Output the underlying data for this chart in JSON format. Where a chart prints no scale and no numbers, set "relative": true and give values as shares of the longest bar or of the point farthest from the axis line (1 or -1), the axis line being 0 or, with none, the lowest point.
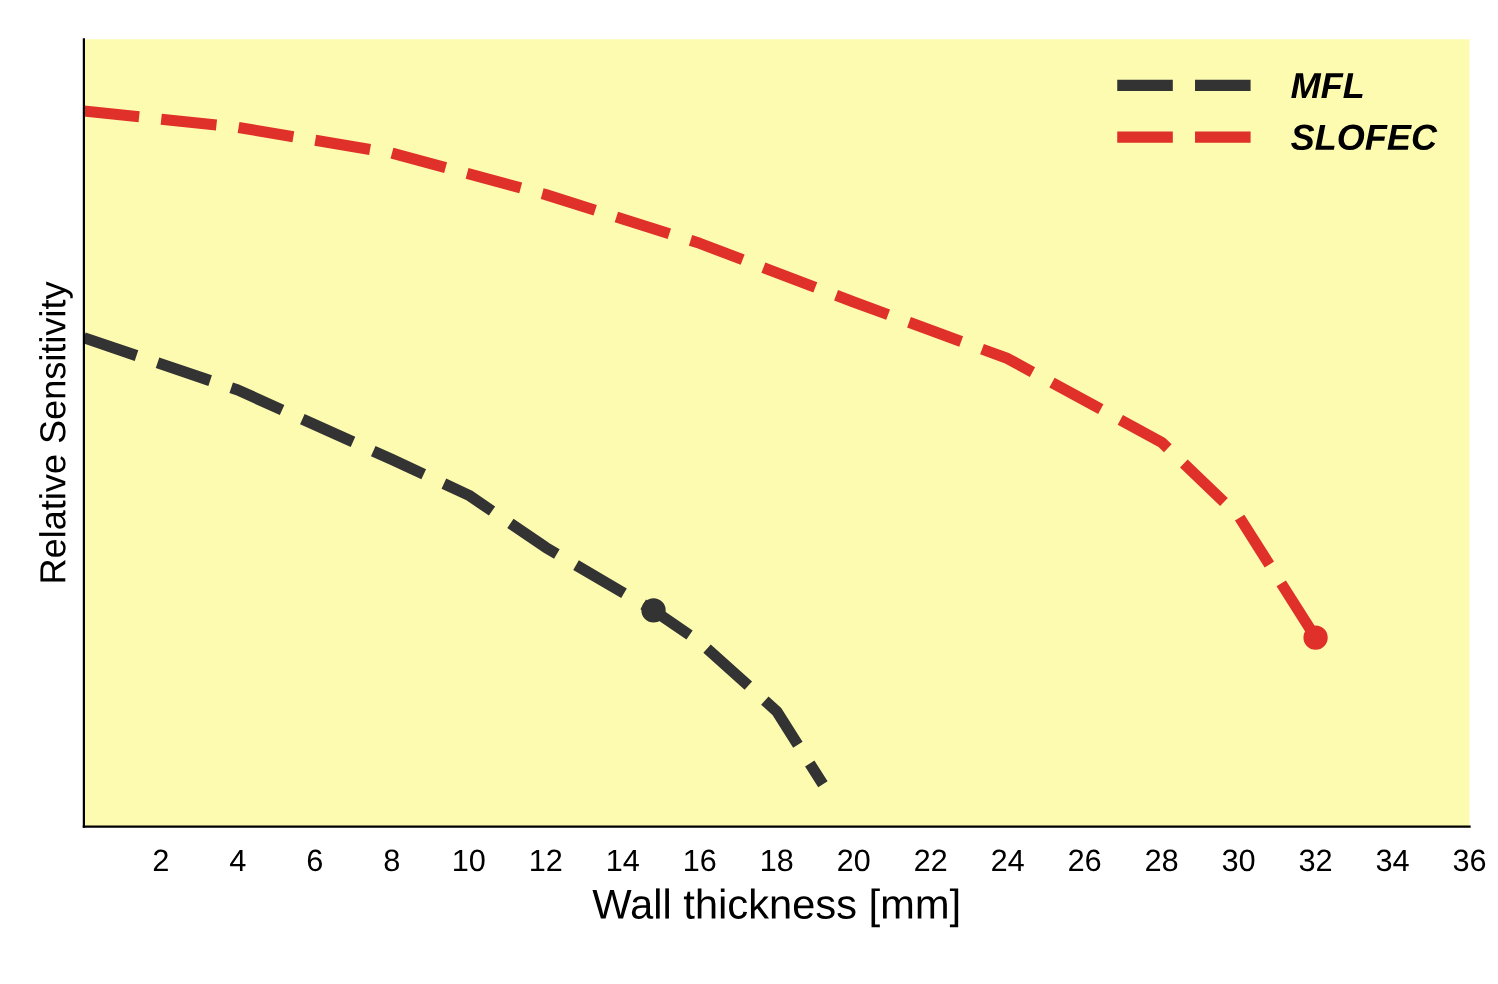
{
  "chart_data": {
    "type": "line",
    "relative": true,
    "xlabel": "Wall thickness [mm]",
    "ylabel": "Relative Sensitivity",
    "xlim": [
      0,
      36
    ],
    "xticks": [
      2,
      4,
      6,
      8,
      10,
      12,
      14,
      16,
      18,
      20,
      22,
      24,
      26,
      28,
      30,
      32,
      34,
      36
    ],
    "tick_labels": "x",
    "grid": false,
    "legend": "top right",
    "line_style": "dashed",
    "marker": "none",
    "series": [
      {
        "name": "MFL",
        "color": "#333333",
        "x": [
          0,
          4,
          8,
          10,
          12,
          14.8,
          16,
          18,
          19.2
        ],
        "values": [
          0.683,
          0.61,
          0.513,
          0.463,
          0.39,
          0.302,
          0.258,
          0.161,
          0.059
        ]
      },
      {
        "name": "SLOFEC",
        "color": "#e0302a",
        "x": [
          0,
          4,
          8,
          12,
          16,
          20,
          24,
          28,
          30,
          32
        ],
        "values": [
          1.0,
          0.977,
          0.941,
          0.883,
          0.815,
          0.733,
          0.654,
          0.537,
          0.434,
          0.264
        ]
      },
      {
        "type": "scatter",
        "marker": "circle",
        "color": "#333333",
        "x": [
          14.8
        ],
        "values": [
          0.302
        ]
      },
      {
        "type": "scatter",
        "marker": "circle",
        "color": "#e0302a",
        "x": [
          32
        ],
        "values": [
          0.264
        ]
      }
    ]
  }
}
